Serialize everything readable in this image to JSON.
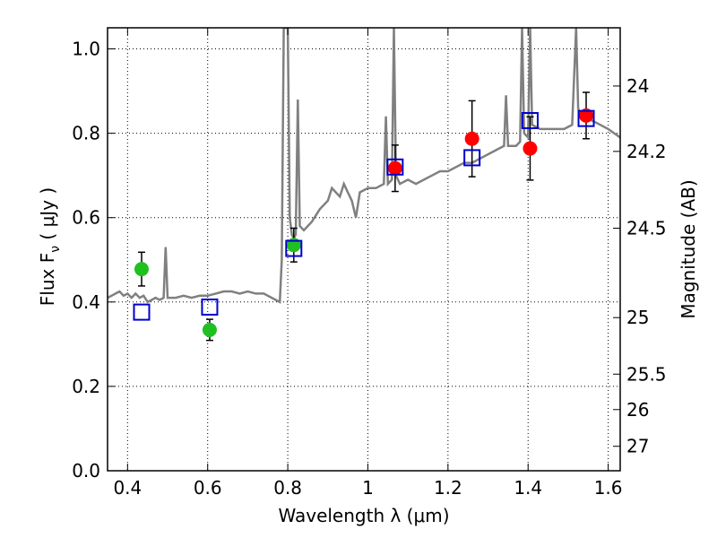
{
  "chart_data": {
    "type": "scatter",
    "xlabel": "Wavelength  λ (μm)",
    "ylabel": "Flux  F",
    "ylabel_sub": "ν",
    "ylabel_unit": " ( μJy )",
    "ylabel_right": "Magnitude (AB)",
    "xlim": [
      0.35,
      1.63
    ],
    "ylim": [
      0.0,
      1.05
    ],
    "grid": true,
    "x_ticks": [
      {
        "value": 0.4,
        "label": "0.4"
      },
      {
        "value": 0.6,
        "label": "0.6"
      },
      {
        "value": 0.8,
        "label": "0.8"
      },
      {
        "value": 1.0,
        "label": "1"
      },
      {
        "value": 1.2,
        "label": "1.2"
      },
      {
        "value": 1.4,
        "label": "1.4"
      },
      {
        "value": 1.6,
        "label": "1.6"
      }
    ],
    "y_ticks": [
      {
        "value": 0.0,
        "label": "0.0"
      },
      {
        "value": 0.2,
        "label": "0.2"
      },
      {
        "value": 0.4,
        "label": "0.4"
      },
      {
        "value": 0.6,
        "label": "0.6"
      },
      {
        "value": 0.8,
        "label": "0.8"
      },
      {
        "value": 1.0,
        "label": "1.0"
      }
    ],
    "right_ticks": [
      {
        "flux": 0.912,
        "label": "24"
      },
      {
        "flux": 0.757,
        "label": "24.2"
      },
      {
        "flux": 0.575,
        "label": "24.5"
      },
      {
        "flux": 0.363,
        "label": "25"
      },
      {
        "flux": 0.229,
        "label": "25.5"
      },
      {
        "flux": 0.145,
        "label": "26"
      },
      {
        "flux": 0.058,
        "label": "27"
      }
    ],
    "colors": {
      "model": "#808080",
      "green": "#20c020",
      "red": "#ff0000",
      "square": "#0000cc",
      "errorbar": "#000000"
    },
    "model_spectrum": [
      [
        0.35,
        0.41
      ],
      [
        0.36,
        0.415
      ],
      [
        0.37,
        0.42
      ],
      [
        0.38,
        0.425
      ],
      [
        0.39,
        0.415
      ],
      [
        0.4,
        0.42
      ],
      [
        0.41,
        0.41
      ],
      [
        0.42,
        0.42
      ],
      [
        0.43,
        0.41
      ],
      [
        0.44,
        0.415
      ],
      [
        0.45,
        0.4
      ],
      [
        0.46,
        0.405
      ],
      [
        0.47,
        0.41
      ],
      [
        0.48,
        0.405
      ],
      [
        0.49,
        0.41
      ],
      [
        0.495,
        0.53
      ],
      [
        0.5,
        0.41
      ],
      [
        0.52,
        0.41
      ],
      [
        0.54,
        0.415
      ],
      [
        0.56,
        0.41
      ],
      [
        0.58,
        0.415
      ],
      [
        0.6,
        0.415
      ],
      [
        0.62,
        0.42
      ],
      [
        0.64,
        0.425
      ],
      [
        0.66,
        0.425
      ],
      [
        0.68,
        0.42
      ],
      [
        0.7,
        0.425
      ],
      [
        0.72,
        0.42
      ],
      [
        0.74,
        0.42
      ],
      [
        0.76,
        0.41
      ],
      [
        0.78,
        0.4
      ],
      [
        0.785,
        0.5
      ],
      [
        0.79,
        1.05
      ],
      [
        0.8,
        1.05
      ],
      [
        0.805,
        0.6
      ],
      [
        0.81,
        0.56
      ],
      [
        0.815,
        0.55
      ],
      [
        0.82,
        0.56
      ],
      [
        0.825,
        0.88
      ],
      [
        0.83,
        0.58
      ],
      [
        0.84,
        0.57
      ],
      [
        0.86,
        0.59
      ],
      [
        0.88,
        0.62
      ],
      [
        0.9,
        0.64
      ],
      [
        0.91,
        0.67
      ],
      [
        0.92,
        0.66
      ],
      [
        0.93,
        0.65
      ],
      [
        0.94,
        0.68
      ],
      [
        0.95,
        0.66
      ],
      [
        0.96,
        0.64
      ],
      [
        0.97,
        0.6
      ],
      [
        0.98,
        0.66
      ],
      [
        1.0,
        0.67
      ],
      [
        1.02,
        0.67
      ],
      [
        1.04,
        0.68
      ],
      [
        1.045,
        0.84
      ],
      [
        1.05,
        0.68
      ],
      [
        1.06,
        0.69
      ],
      [
        1.065,
        1.05
      ],
      [
        1.07,
        0.7
      ],
      [
        1.08,
        0.68
      ],
      [
        1.1,
        0.69
      ],
      [
        1.12,
        0.68
      ],
      [
        1.14,
        0.69
      ],
      [
        1.16,
        0.7
      ],
      [
        1.18,
        0.71
      ],
      [
        1.2,
        0.71
      ],
      [
        1.22,
        0.72
      ],
      [
        1.24,
        0.73
      ],
      [
        1.26,
        0.73
      ],
      [
        1.28,
        0.74
      ],
      [
        1.3,
        0.75
      ],
      [
        1.32,
        0.76
      ],
      [
        1.34,
        0.77
      ],
      [
        1.345,
        0.89
      ],
      [
        1.35,
        0.77
      ],
      [
        1.37,
        0.77
      ],
      [
        1.38,
        0.78
      ],
      [
        1.385,
        1.05
      ],
      [
        1.39,
        0.8
      ],
      [
        1.4,
        0.79
      ],
      [
        1.405,
        1.05
      ],
      [
        1.41,
        0.82
      ],
      [
        1.43,
        0.81
      ],
      [
        1.45,
        0.81
      ],
      [
        1.47,
        0.81
      ],
      [
        1.49,
        0.81
      ],
      [
        1.51,
        0.82
      ],
      [
        1.52,
        1.05
      ],
      [
        1.525,
        0.86
      ],
      [
        1.53,
        0.84
      ],
      [
        1.54,
        0.84
      ],
      [
        1.56,
        0.83
      ],
      [
        1.58,
        0.82
      ],
      [
        1.6,
        0.81
      ],
      [
        1.63,
        0.79
      ]
    ],
    "series": [
      {
        "name": "green-points",
        "marker": "circle",
        "color_key": "green",
        "points": [
          {
            "x": 0.435,
            "y": 0.478,
            "err": 0.04
          },
          {
            "x": 0.605,
            "y": 0.334,
            "err": 0.025
          },
          {
            "x": 0.815,
            "y": 0.535,
            "err": 0.04
          }
        ]
      },
      {
        "name": "red-points",
        "marker": "circle",
        "color_key": "red",
        "points": [
          {
            "x": 1.068,
            "y": 0.717,
            "err": 0.055
          },
          {
            "x": 1.26,
            "y": 0.787,
            "err": 0.09
          },
          {
            "x": 1.405,
            "y": 0.764,
            "err": 0.075
          },
          {
            "x": 1.545,
            "y": 0.842,
            "err": 0.055
          }
        ]
      },
      {
        "name": "model-squares",
        "marker": "square",
        "color_key": "square",
        "points": [
          {
            "x": 0.435,
            "y": 0.376
          },
          {
            "x": 0.605,
            "y": 0.388
          },
          {
            "x": 0.815,
            "y": 0.527
          },
          {
            "x": 1.068,
            "y": 0.72
          },
          {
            "x": 1.26,
            "y": 0.742
          },
          {
            "x": 1.405,
            "y": 0.83
          },
          {
            "x": 1.545,
            "y": 0.835
          }
        ]
      }
    ]
  }
}
